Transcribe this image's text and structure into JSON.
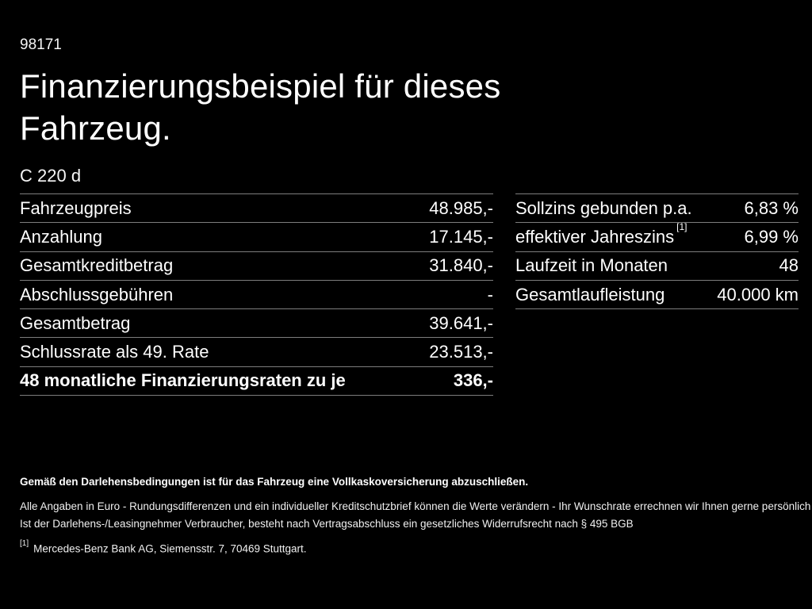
{
  "page": {
    "document_id": "98171",
    "title": "Finanzierungsbeispiel für dieses Fahrzeug.",
    "vehicle_model": "C 220 d"
  },
  "colors": {
    "background": "#000000",
    "text": "#ffffff",
    "divider": "#7d7d7d"
  },
  "financing_table": {
    "rows": [
      {
        "label": "Fahrzeugpreis",
        "value": "48.985,-"
      },
      {
        "label": "Anzahlung",
        "value": "17.145,-"
      },
      {
        "label": "Gesamtkreditbetrag",
        "value": "31.840,-"
      },
      {
        "label": "Abschlussgebühren",
        "value": "-"
      },
      {
        "label": "Gesamtbetrag",
        "value": "39.641,-"
      },
      {
        "label": "Schlussrate als 49. Rate",
        "value": "23.513,-"
      },
      {
        "label": "48 monatliche Finanzierungsraten zu je",
        "value": "336,-"
      }
    ]
  },
  "conditions_table": {
    "rows": [
      {
        "label": "Sollzins gebunden p.a.",
        "value": "6,83 %"
      },
      {
        "label": "effektiver Jahreszins",
        "footnote_marker": "[1]",
        "value": "6,99 %"
      },
      {
        "label": "Laufzeit in Monaten",
        "value": "48"
      },
      {
        "label": "Gesamtlaufleistung",
        "value": "40.000 km"
      }
    ]
  },
  "footer": {
    "insurance_note": "Gemäß den Darlehensbedingungen ist für das Fahrzeug eine Vollkaskoversicherung abzuschließen.",
    "note_line1": "Alle Angaben in Euro - Rundungsdifferenzen und ein individueller Kreditschutzbrief können die Werte verändern - Ihr Wunschrate errechnen wir Ihnen gerne persönlich",
    "note_line2": "Ist der Darlehens-/Leasingnehmer Verbraucher, besteht nach Vertragsabschluss ein gesetzliches Widerrufsrecht nach § 495 BGB",
    "footnote_marker": "[1]",
    "footnote_text": "Mercedes-Benz Bank AG, Siemensstr. 7, 70469 Stuttgart."
  }
}
